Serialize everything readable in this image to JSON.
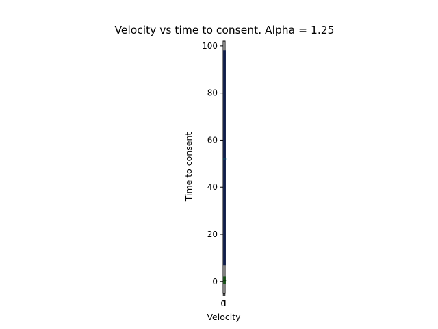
{
  "chart_data": {
    "type": "box",
    "title": "Velocity vs time to consent. Alpha = 1.25",
    "xlabel": "Velocity",
    "ylabel": "Time to consent",
    "x_ticks": [
      "0",
      "1"
    ],
    "y_ticks": [
      0,
      20,
      40,
      60,
      80,
      100
    ],
    "ylim": [
      -5,
      102
    ],
    "xlim": [
      -0.1,
      1.1
    ],
    "grid": false,
    "legend": "none",
    "series": [
      {
        "x": 0.8,
        "min": 7,
        "q1": 7,
        "median": 52,
        "q3": 98,
        "max": 98,
        "box_color": "#1f3a93",
        "median_color": "#1f77b4"
      },
      {
        "x": 0.8,
        "min": -1,
        "q1": -1,
        "median": 0.5,
        "q3": 2,
        "max": 2,
        "box_color": "#2ca02c",
        "median_color": "#1a6e1a"
      }
    ]
  }
}
